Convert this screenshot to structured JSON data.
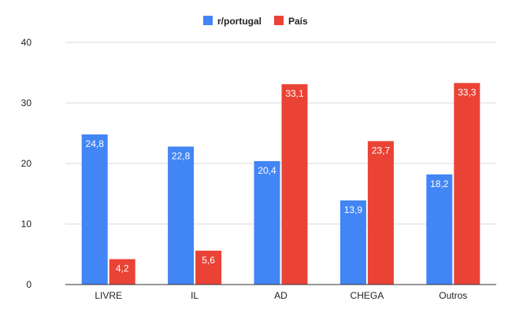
{
  "chart_data": {
    "type": "bar",
    "title": "",
    "xlabel": "",
    "ylabel": "",
    "categories": [
      "LIVRE",
      "IL",
      "AD",
      "CHEGA",
      "Outros"
    ],
    "series": [
      {
        "name": "r/portugal",
        "color": "#4285f4",
        "values": [
          24.8,
          22.8,
          20.4,
          13.9,
          18.2
        ],
        "labels": [
          "24,8",
          "22,8",
          "20,4",
          "13,9",
          "18,2"
        ]
      },
      {
        "name": "País",
        "color": "#ea4335",
        "values": [
          4.2,
          5.6,
          33.1,
          23.7,
          33.3
        ],
        "labels": [
          "4,2",
          "5,6",
          "33,1",
          "23,7",
          "33,3"
        ]
      }
    ],
    "ylim": [
      0,
      40
    ],
    "yticks": [
      0,
      10,
      20,
      30,
      40
    ],
    "grid": true,
    "legend_position": "top-center"
  }
}
